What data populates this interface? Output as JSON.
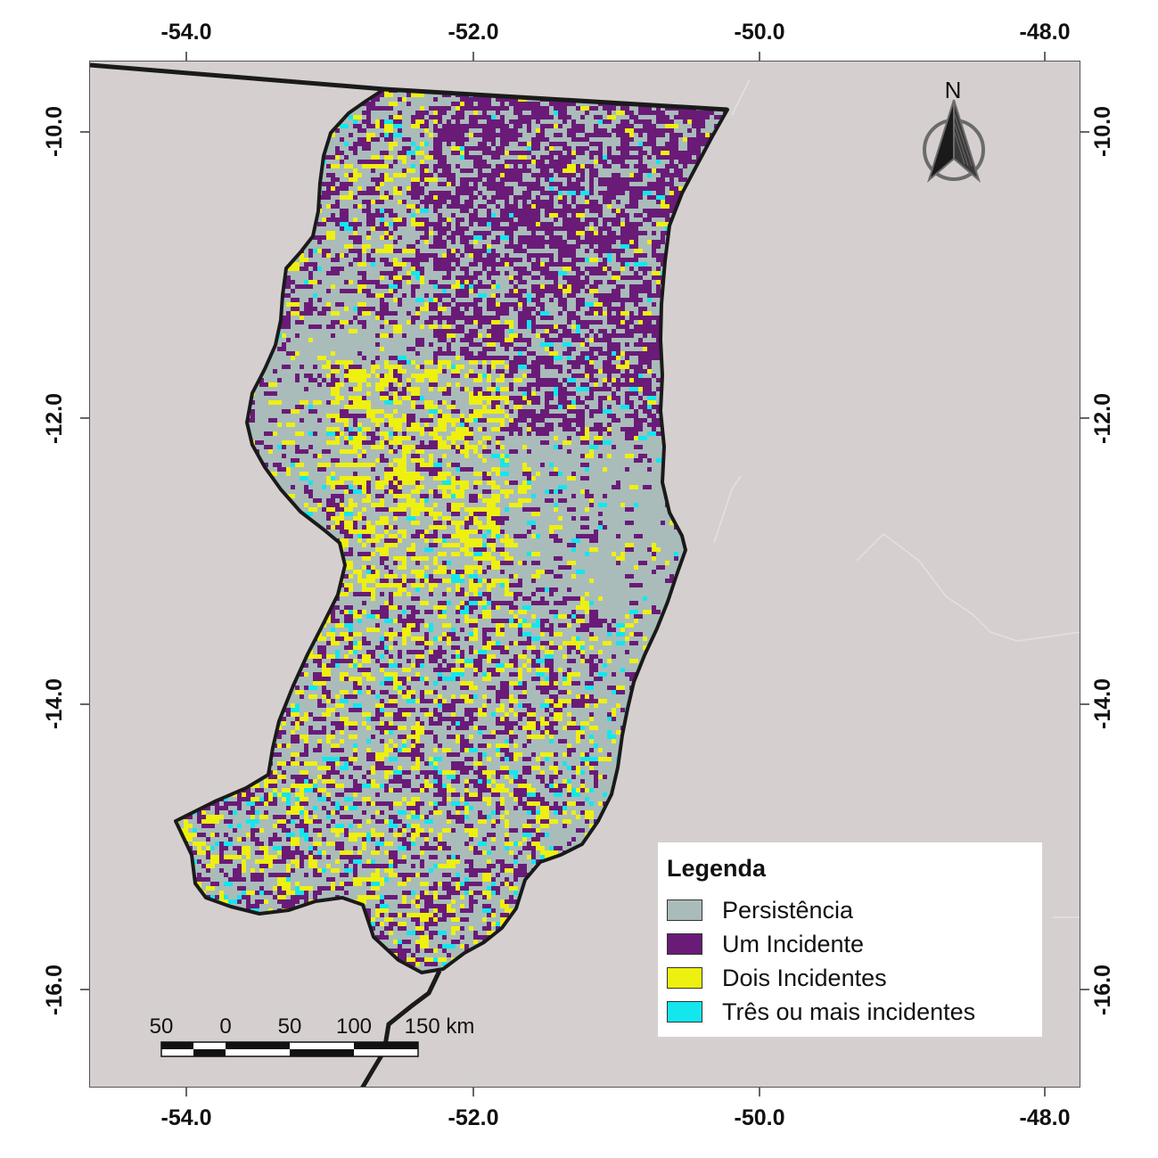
{
  "axes": {
    "x_ticks": [
      "-54.0",
      "-52.0",
      "-50.0",
      "-48.0"
    ],
    "y_ticks": [
      "-10.0",
      "-12.0",
      "-14.0",
      "-16.0"
    ]
  },
  "legend": {
    "title": "Legenda",
    "items": [
      {
        "label": "Persistência",
        "color": "#a9bcba"
      },
      {
        "label": "Um Incidente",
        "color": "#6a1b78"
      },
      {
        "label": "Dois Incidentes",
        "color": "#eef00f"
      },
      {
        "label": "Três ou mais incidentes",
        "color": "#14e6ee"
      }
    ]
  },
  "scale_bar": {
    "labels": [
      "50",
      "0",
      "50",
      "100",
      "150 km"
    ]
  },
  "north_arrow": {
    "label": "N"
  },
  "colors": {
    "background": "#d6cfcf",
    "boundary": "#1a1a1a",
    "region_base": "#a9bcba"
  }
}
